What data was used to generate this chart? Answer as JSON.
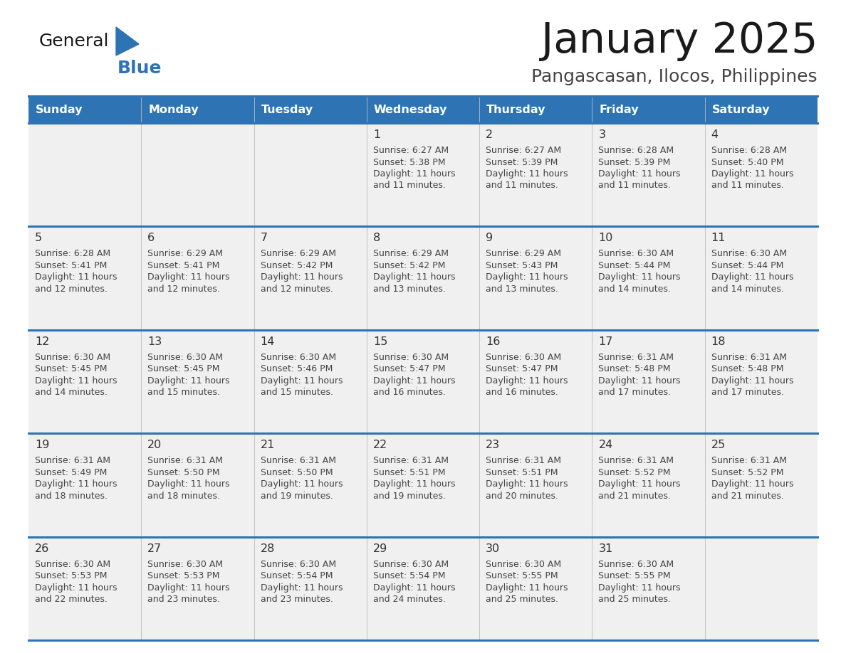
{
  "title": "January 2025",
  "subtitle": "Pangascasan, Ilocos, Philippines",
  "days_of_week": [
    "Sunday",
    "Monday",
    "Tuesday",
    "Wednesday",
    "Thursday",
    "Friday",
    "Saturday"
  ],
  "header_bg_color": "#2E74B5",
  "header_text_color": "#FFFFFF",
  "row_bg_color_1": "#F0F0F0",
  "cell_border_color": "#2E74B5",
  "day_number_color": "#333333",
  "cell_text_color": "#444444",
  "title_color": "#1A1A1A",
  "subtitle_color": "#444444",
  "logo_blue_color": "#2E74B5",
  "logo_general_color": "#1A1A1A",
  "calendar_data": [
    [
      null,
      null,
      null,
      {
        "day": 1,
        "sunrise": "6:27 AM",
        "sunset": "5:38 PM",
        "dl_line1": "Daylight: 11 hours",
        "dl_line2": "and 11 minutes."
      },
      {
        "day": 2,
        "sunrise": "6:27 AM",
        "sunset": "5:39 PM",
        "dl_line1": "Daylight: 11 hours",
        "dl_line2": "and 11 minutes."
      },
      {
        "day": 3,
        "sunrise": "6:28 AM",
        "sunset": "5:39 PM",
        "dl_line1": "Daylight: 11 hours",
        "dl_line2": "and 11 minutes."
      },
      {
        "day": 4,
        "sunrise": "6:28 AM",
        "sunset": "5:40 PM",
        "dl_line1": "Daylight: 11 hours",
        "dl_line2": "and 11 minutes."
      }
    ],
    [
      {
        "day": 5,
        "sunrise": "6:28 AM",
        "sunset": "5:41 PM",
        "dl_line1": "Daylight: 11 hours",
        "dl_line2": "and 12 minutes."
      },
      {
        "day": 6,
        "sunrise": "6:29 AM",
        "sunset": "5:41 PM",
        "dl_line1": "Daylight: 11 hours",
        "dl_line2": "and 12 minutes."
      },
      {
        "day": 7,
        "sunrise": "6:29 AM",
        "sunset": "5:42 PM",
        "dl_line1": "Daylight: 11 hours",
        "dl_line2": "and 12 minutes."
      },
      {
        "day": 8,
        "sunrise": "6:29 AM",
        "sunset": "5:42 PM",
        "dl_line1": "Daylight: 11 hours",
        "dl_line2": "and 13 minutes."
      },
      {
        "day": 9,
        "sunrise": "6:29 AM",
        "sunset": "5:43 PM",
        "dl_line1": "Daylight: 11 hours",
        "dl_line2": "and 13 minutes."
      },
      {
        "day": 10,
        "sunrise": "6:30 AM",
        "sunset": "5:44 PM",
        "dl_line1": "Daylight: 11 hours",
        "dl_line2": "and 14 minutes."
      },
      {
        "day": 11,
        "sunrise": "6:30 AM",
        "sunset": "5:44 PM",
        "dl_line1": "Daylight: 11 hours",
        "dl_line2": "and 14 minutes."
      }
    ],
    [
      {
        "day": 12,
        "sunrise": "6:30 AM",
        "sunset": "5:45 PM",
        "dl_line1": "Daylight: 11 hours",
        "dl_line2": "and 14 minutes."
      },
      {
        "day": 13,
        "sunrise": "6:30 AM",
        "sunset": "5:45 PM",
        "dl_line1": "Daylight: 11 hours",
        "dl_line2": "and 15 minutes."
      },
      {
        "day": 14,
        "sunrise": "6:30 AM",
        "sunset": "5:46 PM",
        "dl_line1": "Daylight: 11 hours",
        "dl_line2": "and 15 minutes."
      },
      {
        "day": 15,
        "sunrise": "6:30 AM",
        "sunset": "5:47 PM",
        "dl_line1": "Daylight: 11 hours",
        "dl_line2": "and 16 minutes."
      },
      {
        "day": 16,
        "sunrise": "6:30 AM",
        "sunset": "5:47 PM",
        "dl_line1": "Daylight: 11 hours",
        "dl_line2": "and 16 minutes."
      },
      {
        "day": 17,
        "sunrise": "6:31 AM",
        "sunset": "5:48 PM",
        "dl_line1": "Daylight: 11 hours",
        "dl_line2": "and 17 minutes."
      },
      {
        "day": 18,
        "sunrise": "6:31 AM",
        "sunset": "5:48 PM",
        "dl_line1": "Daylight: 11 hours",
        "dl_line2": "and 17 minutes."
      }
    ],
    [
      {
        "day": 19,
        "sunrise": "6:31 AM",
        "sunset": "5:49 PM",
        "dl_line1": "Daylight: 11 hours",
        "dl_line2": "and 18 minutes."
      },
      {
        "day": 20,
        "sunrise": "6:31 AM",
        "sunset": "5:50 PM",
        "dl_line1": "Daylight: 11 hours",
        "dl_line2": "and 18 minutes."
      },
      {
        "day": 21,
        "sunrise": "6:31 AM",
        "sunset": "5:50 PM",
        "dl_line1": "Daylight: 11 hours",
        "dl_line2": "and 19 minutes."
      },
      {
        "day": 22,
        "sunrise": "6:31 AM",
        "sunset": "5:51 PM",
        "dl_line1": "Daylight: 11 hours",
        "dl_line2": "and 19 minutes."
      },
      {
        "day": 23,
        "sunrise": "6:31 AM",
        "sunset": "5:51 PM",
        "dl_line1": "Daylight: 11 hours",
        "dl_line2": "and 20 minutes."
      },
      {
        "day": 24,
        "sunrise": "6:31 AM",
        "sunset": "5:52 PM",
        "dl_line1": "Daylight: 11 hours",
        "dl_line2": "and 21 minutes."
      },
      {
        "day": 25,
        "sunrise": "6:31 AM",
        "sunset": "5:52 PM",
        "dl_line1": "Daylight: 11 hours",
        "dl_line2": "and 21 minutes."
      }
    ],
    [
      {
        "day": 26,
        "sunrise": "6:30 AM",
        "sunset": "5:53 PM",
        "dl_line1": "Daylight: 11 hours",
        "dl_line2": "and 22 minutes."
      },
      {
        "day": 27,
        "sunrise": "6:30 AM",
        "sunset": "5:53 PM",
        "dl_line1": "Daylight: 11 hours",
        "dl_line2": "and 23 minutes."
      },
      {
        "day": 28,
        "sunrise": "6:30 AM",
        "sunset": "5:54 PM",
        "dl_line1": "Daylight: 11 hours",
        "dl_line2": "and 23 minutes."
      },
      {
        "day": 29,
        "sunrise": "6:30 AM",
        "sunset": "5:54 PM",
        "dl_line1": "Daylight: 11 hours",
        "dl_line2": "and 24 minutes."
      },
      {
        "day": 30,
        "sunrise": "6:30 AM",
        "sunset": "5:55 PM",
        "dl_line1": "Daylight: 11 hours",
        "dl_line2": "and 25 minutes."
      },
      {
        "day": 31,
        "sunrise": "6:30 AM",
        "sunset": "5:55 PM",
        "dl_line1": "Daylight: 11 hours",
        "dl_line2": "and 25 minutes."
      },
      null
    ]
  ]
}
